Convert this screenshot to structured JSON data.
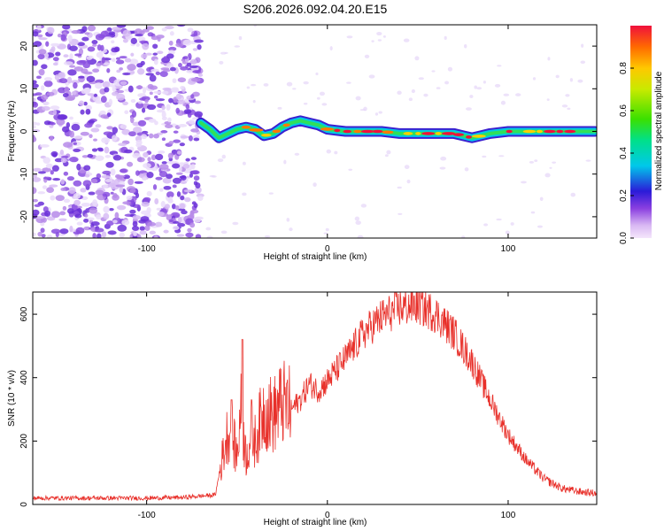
{
  "title": "S206.2026.092.04.20.E15",
  "chart_data": [
    {
      "type": "heatmap",
      "name": "spectrogram",
      "xlabel": "Height of straight line (km)",
      "ylabel": "Frequency (Hz)",
      "xlim": [
        -163,
        149
      ],
      "ylim": [
        -25,
        25
      ],
      "xticks": [
        -100,
        0,
        100
      ],
      "xtick_labels": [
        "-100",
        "0",
        "100"
      ],
      "yticks": [
        -20,
        -10,
        0,
        10,
        20
      ],
      "ytick_labels": [
        "-20",
        "-10",
        "0",
        "10",
        "20"
      ],
      "noise_region_x": [
        -163,
        -70
      ],
      "ridge": {
        "x": [
          -70,
          -65,
          -60,
          -55,
          -50,
          -45,
          -40,
          -35,
          -30,
          -25,
          -20,
          -15,
          -10,
          -5,
          0,
          10,
          20,
          30,
          40,
          50,
          60,
          70,
          75,
          80,
          85,
          90,
          100,
          110,
          120,
          130,
          140,
          148
        ],
        "freq_hz": [
          2.0,
          0.5,
          -1.5,
          -0.5,
          0.5,
          1.0,
          0.5,
          -1.0,
          -0.5,
          1.0,
          2.0,
          2.5,
          2.0,
          1.5,
          0.5,
          0.0,
          0.0,
          0.0,
          -0.5,
          -0.5,
          -0.5,
          -0.5,
          -1.0,
          -1.5,
          -1.0,
          -0.5,
          0.0,
          0.0,
          0.0,
          0.0,
          0.0,
          0.0
        ]
      },
      "colorbar": {
        "label": "Normalized spectral amplitude",
        "range": [
          0,
          1
        ],
        "ticks": [
          0.0,
          0.2,
          0.4,
          0.6,
          0.8
        ],
        "tick_labels": [
          "0.0",
          "0.2",
          "0.4",
          "0.6",
          "0.8"
        ]
      }
    },
    {
      "type": "line",
      "name": "snr",
      "xlabel": "Height of straight line (km)",
      "ylabel": "SNR (10 * v/v)",
      "xlim": [
        -163,
        149
      ],
      "ylim": [
        0,
        670
      ],
      "xticks": [
        -100,
        0,
        100
      ],
      "xtick_labels": [
        "-100",
        "0",
        "100"
      ],
      "yticks": [
        0,
        200,
        400,
        600
      ],
      "ytick_labels": [
        "0",
        "200",
        "400",
        "600"
      ],
      "color": "#e8302a",
      "series": [
        {
          "name": "SNR",
          "x": [
            -163,
            -140,
            -120,
            -100,
            -80,
            -62,
            -58,
            -55,
            -52,
            -50,
            -48,
            -45,
            -42,
            -40,
            -35,
            -30,
            -25,
            -20,
            -15,
            -10,
            -5,
            0,
            10,
            20,
            30,
            40,
            50,
            60,
            70,
            80,
            90,
            100,
            110,
            120,
            130,
            140,
            149
          ],
          "y": [
            20,
            20,
            20,
            20,
            22,
            30,
            150,
            230,
            200,
            150,
            300,
            150,
            220,
            200,
            300,
            280,
            320,
            300,
            330,
            380,
            360,
            390,
            460,
            540,
            590,
            620,
            630,
            600,
            540,
            450,
            330,
            220,
            140,
            80,
            50,
            40,
            35
          ]
        }
      ],
      "spikes": [
        {
          "x": -47,
          "y": 520
        },
        {
          "x": -53,
          "y": 330
        },
        {
          "x": -42,
          "y": 330
        }
      ]
    }
  ]
}
